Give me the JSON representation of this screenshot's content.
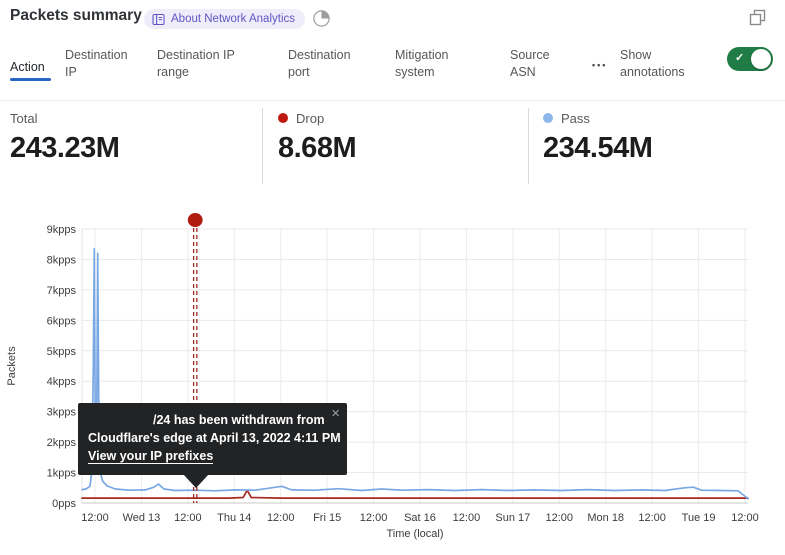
{
  "header": {
    "title": "Packets summary",
    "badge_label": "About Network Analytics"
  },
  "tabs": [
    {
      "label": "Action",
      "active": true
    },
    {
      "label": "Destination IP",
      "active": false
    },
    {
      "label": "Destination IP range",
      "active": false
    },
    {
      "label": "Destination port",
      "active": false
    },
    {
      "label": "Mitigation system",
      "active": false
    },
    {
      "label": "Source ASN",
      "active": false
    }
  ],
  "more_label": "•••",
  "annotations_toggle": {
    "label": "Show annotations",
    "state": "on"
  },
  "stats": [
    {
      "label": "Total",
      "value": "243.23M",
      "dot_color": ""
    },
    {
      "label": "Drop",
      "value": "8.68M",
      "dot_color": "#c01a10"
    },
    {
      "label": "Pass",
      "value": "234.54M",
      "dot_color": "#8db6ea"
    }
  ],
  "tooltip": {
    "line1": "/24 has been withdrawn from",
    "line2": "Cloudflare's edge at April 13, 2022 4:11 PM",
    "link": "View your IP prefixes",
    "close": "×"
  },
  "chart_data": {
    "type": "line",
    "title": "Packets summary",
    "xlabel": "Time (local)",
    "ylabel": "Packets",
    "y_unit": "kpps",
    "ylim": [
      0,
      9
    ],
    "grid": true,
    "x_ticks": [
      "12:00",
      "Wed 13",
      "12:00",
      "Thu 14",
      "12:00",
      "Fri 15",
      "12:00",
      "Sat 16",
      "12:00",
      "Sun 17",
      "12:00",
      "Mon 18",
      "12:00",
      "Tue 19",
      "12:00"
    ],
    "y_ticks": [
      "0pps",
      "1kpps",
      "2kpps",
      "3kpps",
      "4kpps",
      "5kpps",
      "6kpps",
      "7kpps",
      "8kpps",
      "9kpps"
    ],
    "series": [
      {
        "name": "Pass",
        "color": "#79a7e4",
        "total": "234.54M",
        "points": [
          [
            0,
            0.44
          ],
          [
            0.006,
            0.46
          ],
          [
            0.012,
            0.55
          ],
          [
            0.015,
            1.1
          ],
          [
            0.017,
            4.5
          ],
          [
            0.0185,
            8.35
          ],
          [
            0.02,
            2.2
          ],
          [
            0.022,
            2.4
          ],
          [
            0.0235,
            8.2
          ],
          [
            0.025,
            3.5
          ],
          [
            0.027,
            1.05
          ],
          [
            0.031,
            0.72
          ],
          [
            0.038,
            0.56
          ],
          [
            0.05,
            0.46
          ],
          [
            0.07,
            0.42
          ],
          [
            0.095,
            0.43
          ],
          [
            0.108,
            0.52
          ],
          [
            0.115,
            0.62
          ],
          [
            0.123,
            0.46
          ],
          [
            0.14,
            0.41
          ],
          [
            0.17,
            0.42
          ],
          [
            0.2,
            0.4
          ],
          [
            0.23,
            0.43
          ],
          [
            0.26,
            0.42
          ],
          [
            0.3,
            0.55
          ],
          [
            0.315,
            0.43
          ],
          [
            0.35,
            0.42
          ],
          [
            0.385,
            0.47
          ],
          [
            0.42,
            0.41
          ],
          [
            0.45,
            0.46
          ],
          [
            0.48,
            0.42
          ],
          [
            0.52,
            0.44
          ],
          [
            0.56,
            0.41
          ],
          [
            0.6,
            0.44
          ],
          [
            0.64,
            0.41
          ],
          [
            0.68,
            0.43
          ],
          [
            0.72,
            0.41
          ],
          [
            0.76,
            0.44
          ],
          [
            0.8,
            0.41
          ],
          [
            0.84,
            0.43
          ],
          [
            0.875,
            0.41
          ],
          [
            0.905,
            0.5
          ],
          [
            0.918,
            0.52
          ],
          [
            0.93,
            0.42
          ],
          [
            0.96,
            0.41
          ],
          [
            0.985,
            0.4
          ],
          [
            0.992,
            0.28
          ],
          [
            1,
            0.14
          ]
        ]
      },
      {
        "name": "Drop",
        "color": "#a6291d",
        "total": "8.68M",
        "points": [
          [
            0,
            0.16
          ],
          [
            0.06,
            0.16
          ],
          [
            0.12,
            0.16
          ],
          [
            0.18,
            0.16
          ],
          [
            0.22,
            0.16
          ],
          [
            0.242,
            0.18
          ],
          [
            0.248,
            0.42
          ],
          [
            0.254,
            0.18
          ],
          [
            0.3,
            0.16
          ],
          [
            0.4,
            0.16
          ],
          [
            0.5,
            0.16
          ],
          [
            0.6,
            0.16
          ],
          [
            0.7,
            0.16
          ],
          [
            0.8,
            0.16
          ],
          [
            0.9,
            0.16
          ],
          [
            1,
            0.16
          ]
        ]
      }
    ],
    "annotation": {
      "t": 0.17,
      "dot_color": "#b11c10",
      "line_color": "#9e2b20",
      "text": "/24 has been withdrawn from Cloudflare's edge at April 13, 2022 4:11 PM"
    }
  }
}
